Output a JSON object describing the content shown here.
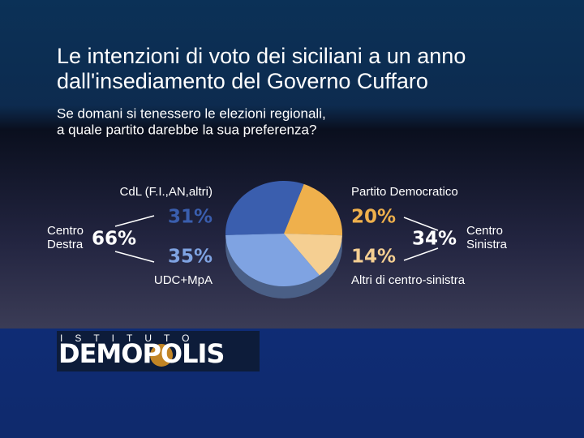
{
  "chart_data": {
    "type": "pie",
    "title": [
      "Le intenzioni di voto dei siciliani a un anno",
      "dall'insediamento del Governo Cuffaro"
    ],
    "subtitle": [
      "Se domani si tenessero le elezioni regionali,",
      "a quale partito darebbe la sua preferenza?"
    ],
    "categories": [
      "Partito Democratico",
      "Altri di centro-sinistra",
      "UDC+MpA",
      "CdL (F.I.,AN,altri)"
    ],
    "values": [
      20,
      14,
      35,
      31
    ],
    "value_labels": [
      "20%",
      "14%",
      "35%",
      "31%"
    ],
    "colors": [
      "#efb04c",
      "#f5cf92",
      "#7fa3e2",
      "#3a5eae"
    ],
    "groups": [
      {
        "name": "Centro Destra",
        "value": 66,
        "value_label": "66%"
      },
      {
        "name": "Centro Sinistra",
        "value": 34,
        "value_label": "34%"
      }
    ]
  },
  "logo": {
    "top": "ISTITUTO",
    "name": "DEMOPOLIS"
  }
}
